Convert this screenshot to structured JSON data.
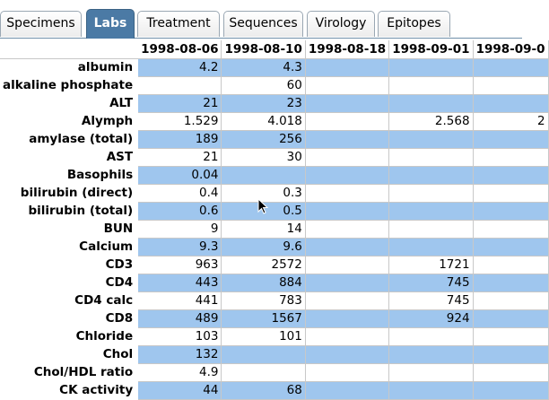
{
  "tabs": [
    {
      "label": "Specimens",
      "active": false
    },
    {
      "label": "Labs",
      "active": true
    },
    {
      "label": "Treatment",
      "active": false
    },
    {
      "label": "Sequences",
      "active": false
    },
    {
      "label": "Virology",
      "active": false
    },
    {
      "label": "Epitopes",
      "active": false
    }
  ],
  "table": {
    "dates": [
      "1998-08-06",
      "1998-08-10",
      "1998-08-18",
      "1998-09-01",
      "1998-09-0"
    ],
    "rows": [
      {
        "label": "albumin",
        "shade": true,
        "values": [
          "4.2",
          "4.3",
          "",
          "",
          ""
        ]
      },
      {
        "label": "alkaline phosphate",
        "shade": false,
        "values": [
          "",
          "60",
          "",
          "",
          ""
        ]
      },
      {
        "label": "ALT",
        "shade": true,
        "values": [
          "21",
          "23",
          "",
          "",
          ""
        ]
      },
      {
        "label": "Alymph",
        "shade": false,
        "values": [
          "1.529",
          "4.018",
          "",
          "2.568",
          "2"
        ]
      },
      {
        "label": "amylase (total)",
        "shade": true,
        "values": [
          "189",
          "256",
          "",
          "",
          ""
        ]
      },
      {
        "label": "AST",
        "shade": false,
        "values": [
          "21",
          "30",
          "",
          "",
          ""
        ]
      },
      {
        "label": "Basophils",
        "shade": true,
        "values": [
          "0.04",
          "",
          "",
          "",
          ""
        ]
      },
      {
        "label": "bilirubin (direct)",
        "shade": false,
        "values": [
          "0.4",
          "0.3",
          "",
          "",
          ""
        ]
      },
      {
        "label": "bilirubin (total)",
        "shade": true,
        "values": [
          "0.6",
          "0.5",
          "",
          "",
          ""
        ]
      },
      {
        "label": "BUN",
        "shade": false,
        "values": [
          "9",
          "14",
          "",
          "",
          ""
        ]
      },
      {
        "label": "Calcium",
        "shade": true,
        "values": [
          "9.3",
          "9.6",
          "",
          "",
          ""
        ]
      },
      {
        "label": "CD3",
        "shade": false,
        "values": [
          "963",
          "2572",
          "",
          "1721",
          ""
        ]
      },
      {
        "label": "CD4",
        "shade": true,
        "values": [
          "443",
          "884",
          "",
          "745",
          ""
        ]
      },
      {
        "label": "CD4 calc",
        "shade": false,
        "values": [
          "441",
          "783",
          "",
          "745",
          ""
        ]
      },
      {
        "label": "CD8",
        "shade": true,
        "values": [
          "489",
          "1567",
          "",
          "924",
          ""
        ]
      },
      {
        "label": "Chloride",
        "shade": false,
        "values": [
          "103",
          "101",
          "",
          "",
          ""
        ]
      },
      {
        "label": "Chol",
        "shade": true,
        "values": [
          "132",
          "",
          "",
          "",
          ""
        ]
      },
      {
        "label": "Chol/HDL ratio",
        "shade": false,
        "values": [
          "4.9",
          "",
          "",
          "",
          ""
        ]
      },
      {
        "label": "CK activity",
        "shade": true,
        "values": [
          "44",
          "68",
          "",
          "",
          ""
        ]
      }
    ]
  },
  "colors": {
    "active_tab": "#4b7aa5",
    "row_shade": "#9fc6ee"
  }
}
